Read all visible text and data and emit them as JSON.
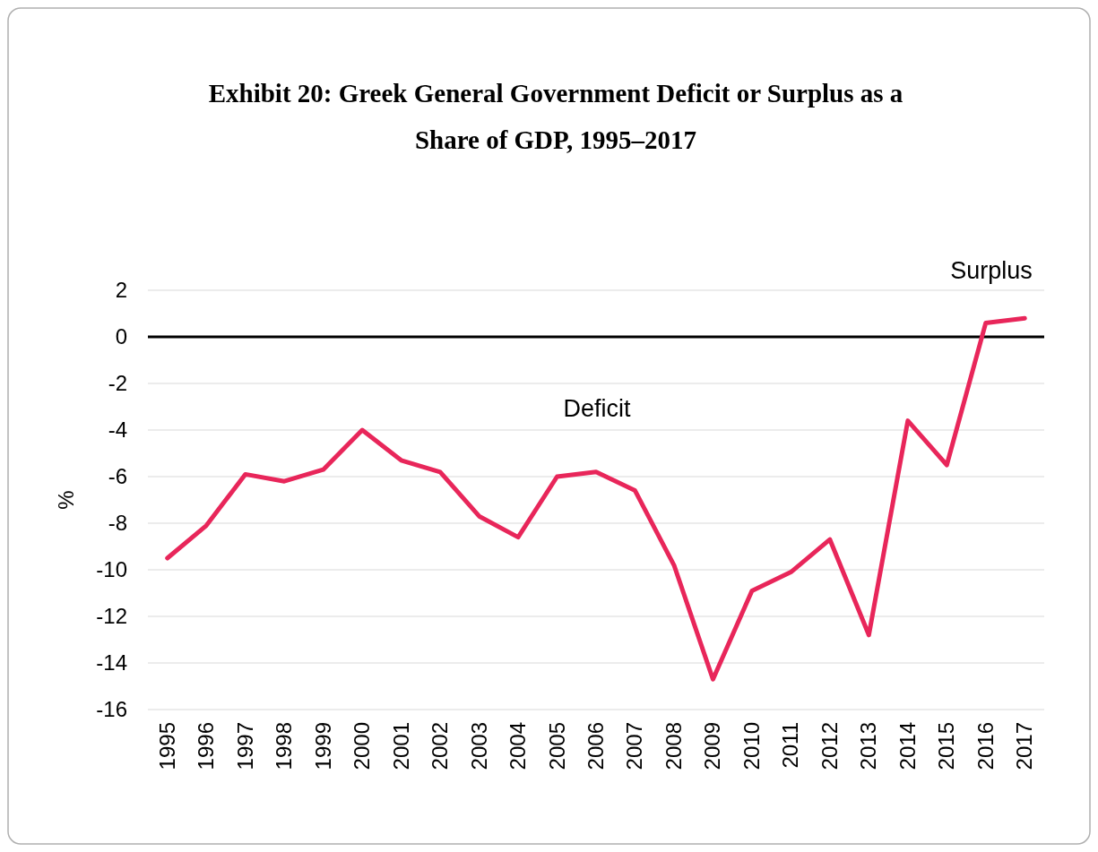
{
  "chart_data": {
    "type": "line",
    "title": "Exhibit 20: Greek General Government Deficit or Surplus as a Share of GDP, 1995–2017",
    "ylabel": "%",
    "categories": [
      "1995",
      "1996",
      "1997",
      "1998",
      "1999",
      "2000",
      "2001",
      "2002",
      "2003",
      "2004",
      "2005",
      "2006",
      "2007",
      "2008",
      "2009",
      "2010",
      "2011",
      "2012",
      "2013",
      "2014",
      "2015",
      "2016",
      "2017"
    ],
    "series": [
      {
        "color": "#e8265a",
        "values": [
          -9.5,
          -8.1,
          -5.9,
          -6.2,
          -5.7,
          -4.0,
          -5.3,
          -5.8,
          -7.7,
          -8.6,
          -6.0,
          -5.8,
          -6.6,
          -9.8,
          -14.7,
          -10.9,
          -10.1,
          -8.7,
          -12.8,
          -3.6,
          -5.5,
          0.6,
          0.8
        ]
      }
    ],
    "ylim": [
      -16,
      2
    ],
    "yticks": [
      -16,
      -14,
      -12,
      -10,
      -8,
      -6,
      -4,
      -2,
      0,
      2
    ],
    "grid": "y",
    "marker": "none",
    "line_style": "solid",
    "ref_lines": [
      {
        "axis": "y",
        "value": 0,
        "color": "#000000"
      }
    ],
    "annotations": [
      "Surplus",
      "Deficit"
    ]
  }
}
